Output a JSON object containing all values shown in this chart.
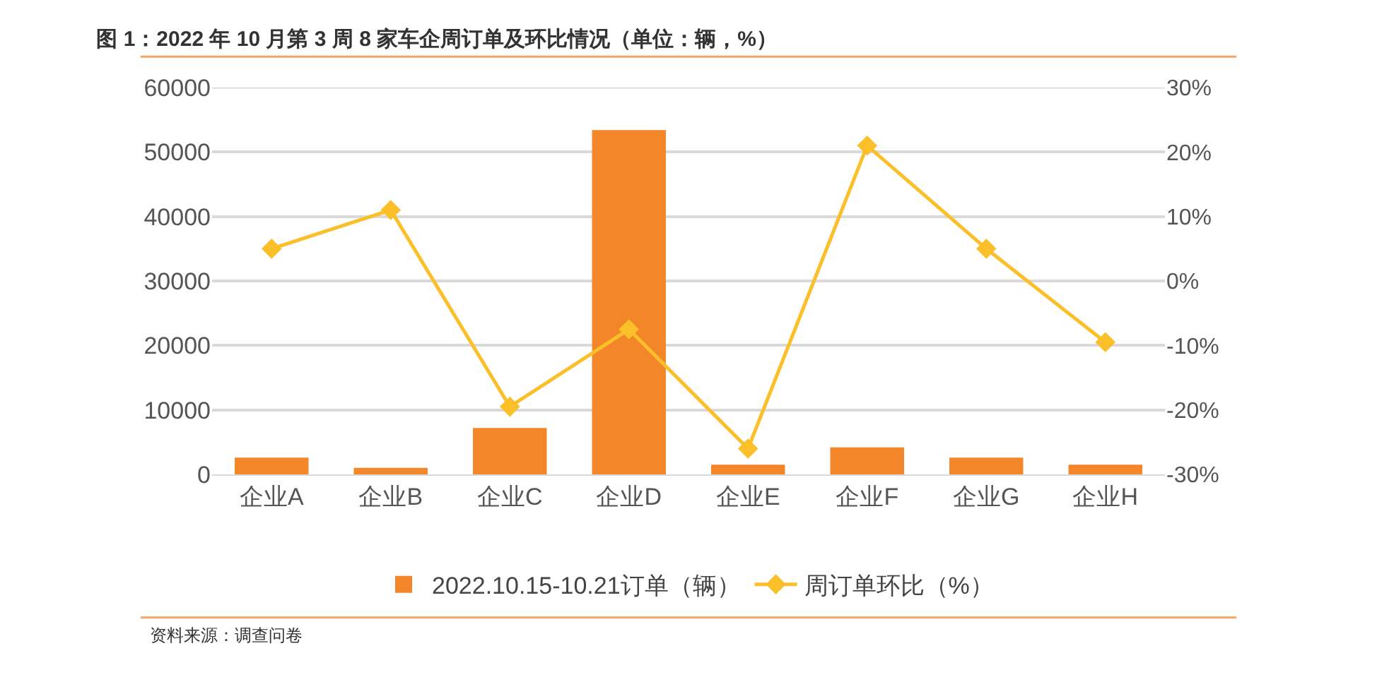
{
  "chart_data": {
    "type": "bar",
    "title": "图 1：2022 年 10 月第 3 周 8 家车企周订单及环比情况（单位：辆，%）",
    "categories": [
      "企业A",
      "企业B",
      "企业C",
      "企业D",
      "企业E",
      "企业F",
      "企业G",
      "企业H"
    ],
    "series": [
      {
        "name": "2022.10.15-10.21订单（辆）",
        "color": "#f4862a",
        "values": [
          2600,
          1000,
          7200,
          53400,
          1500,
          4200,
          2600,
          1500
        ]
      },
      {
        "name": "周订单环比（%）",
        "type": "line",
        "axis": "y2",
        "color": "#fbbf2a",
        "marker": "diamond",
        "values": [
          5,
          11,
          -19.5,
          -7.5,
          -26,
          21,
          5,
          -9.5
        ]
      }
    ],
    "ylim": [
      0,
      60000
    ],
    "yticks": [
      0,
      10000,
      20000,
      30000,
      40000,
      50000,
      60000
    ],
    "y2lim": [
      -30,
      30
    ],
    "y2ticks": [
      {
        "value": -30,
        "label": "-30%"
      },
      {
        "value": -20,
        "label": "-20%"
      },
      {
        "value": -10,
        "label": "-10%"
      },
      {
        "value": 0,
        "label": "0%"
      },
      {
        "value": 10,
        "label": "10%"
      },
      {
        "value": 20,
        "label": "20%"
      },
      {
        "value": 30,
        "label": "30%"
      }
    ],
    "grid": "y",
    "legend": "bottom",
    "annotations": [
      "资料来源：调查问卷"
    ]
  }
}
